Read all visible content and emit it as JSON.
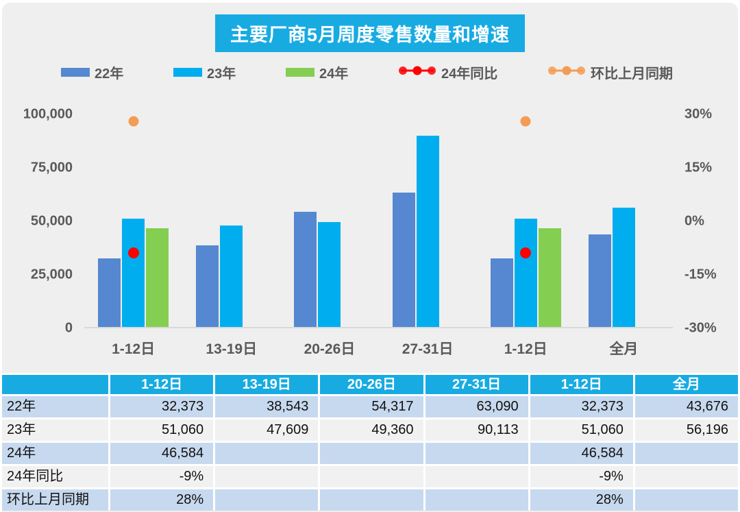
{
  "title": "主要厂商5月周度零售数量和增速",
  "colors": {
    "title_bg": "#18ABE2",
    "header_bg": "#18ABE2",
    "bar_22": "#5588D0",
    "bar_23": "#00AEEF",
    "bar_24": "#84CE52",
    "yoy_red": "#FE0000",
    "mom_orange": "#F49C54",
    "row_blue": "#C7D9EE",
    "row_gray": "#F1F1F1",
    "axis_text": "#595959",
    "baseline": "#D9D9D9"
  },
  "legend": [
    {
      "label": "22年",
      "marker": "swatch",
      "color_key": "bar_22",
      "name": "legend-22"
    },
    {
      "label": "23年",
      "marker": "swatch",
      "color_key": "bar_23",
      "name": "legend-23"
    },
    {
      "label": "24年",
      "marker": "swatch",
      "color_key": "bar_24",
      "name": "legend-24"
    },
    {
      "label": "24年同比",
      "marker": "dotline",
      "color_key": "yoy_red",
      "name": "legend-yoy"
    },
    {
      "label": "环比上月同期",
      "marker": "dotline",
      "color_key": "mom_orange",
      "name": "legend-mom"
    }
  ],
  "chart_data": {
    "type": "bar",
    "title": "主要厂商5月周度零售数量和增速",
    "categories": [
      "1-12日",
      "13-19日",
      "20-26日",
      "27-31日",
      "1-12日",
      "全月"
    ],
    "series": [
      {
        "name": "22年",
        "type": "bar",
        "axis": "left",
        "color_key": "bar_22",
        "values": [
          32373,
          38543,
          54317,
          63090,
          32373,
          43676
        ]
      },
      {
        "name": "23年",
        "type": "bar",
        "axis": "left",
        "color_key": "bar_23",
        "values": [
          51060,
          47609,
          49360,
          90113,
          51060,
          56196
        ]
      },
      {
        "name": "24年",
        "type": "bar",
        "axis": "left",
        "color_key": "bar_24",
        "values": [
          46584,
          null,
          null,
          null,
          46584,
          null
        ]
      },
      {
        "name": "24年同比",
        "type": "scatter",
        "axis": "right",
        "color_key": "yoy_red",
        "size": 16,
        "values": [
          -9,
          null,
          null,
          null,
          -9,
          null
        ]
      },
      {
        "name": "环比上月同期",
        "type": "scatter",
        "axis": "right",
        "color_key": "mom_orange",
        "size": 15,
        "values": [
          28,
          null,
          null,
          null,
          28,
          null
        ]
      }
    ],
    "left_axis": {
      "min": 0,
      "max": 100000,
      "ticks": [
        {
          "v": 0,
          "label": "0"
        },
        {
          "v": 25000,
          "label": "25,000"
        },
        {
          "v": 50000,
          "label": "50,000"
        },
        {
          "v": 75000,
          "label": "75,000"
        },
        {
          "v": 100000,
          "label": "100,000"
        }
      ]
    },
    "right_axis": {
      "min": -30,
      "max": 30,
      "ticks": [
        {
          "v": -30,
          "label": "-30%"
        },
        {
          "v": -15,
          "label": "-15%"
        },
        {
          "v": 0,
          "label": "0%"
        },
        {
          "v": 15,
          "label": "15%"
        },
        {
          "v": 30,
          "label": "30%"
        }
      ]
    },
    "grid": false,
    "legend_position": "top"
  },
  "table": {
    "columns": [
      "",
      "1-12日",
      "13-19日",
      "20-26日",
      "27-31日",
      "1-12日",
      "全月"
    ],
    "rows": [
      {
        "label": "22年",
        "values": [
          "32,373",
          "38,543",
          "54,317",
          "63,090",
          "32,373",
          "43,676"
        ]
      },
      {
        "label": "23年",
        "values": [
          "51,060",
          "47,609",
          "49,360",
          "90,113",
          "51,060",
          "56,196"
        ]
      },
      {
        "label": "24年",
        "values": [
          "46,584",
          "",
          "",
          "",
          "46,584",
          ""
        ]
      },
      {
        "label": "24年同比",
        "values": [
          "-9%",
          "",
          "",
          "",
          "-9%",
          ""
        ]
      },
      {
        "label": "环比上月同期",
        "values": [
          "28%",
          "",
          "",
          "",
          "28%",
          ""
        ]
      }
    ]
  }
}
